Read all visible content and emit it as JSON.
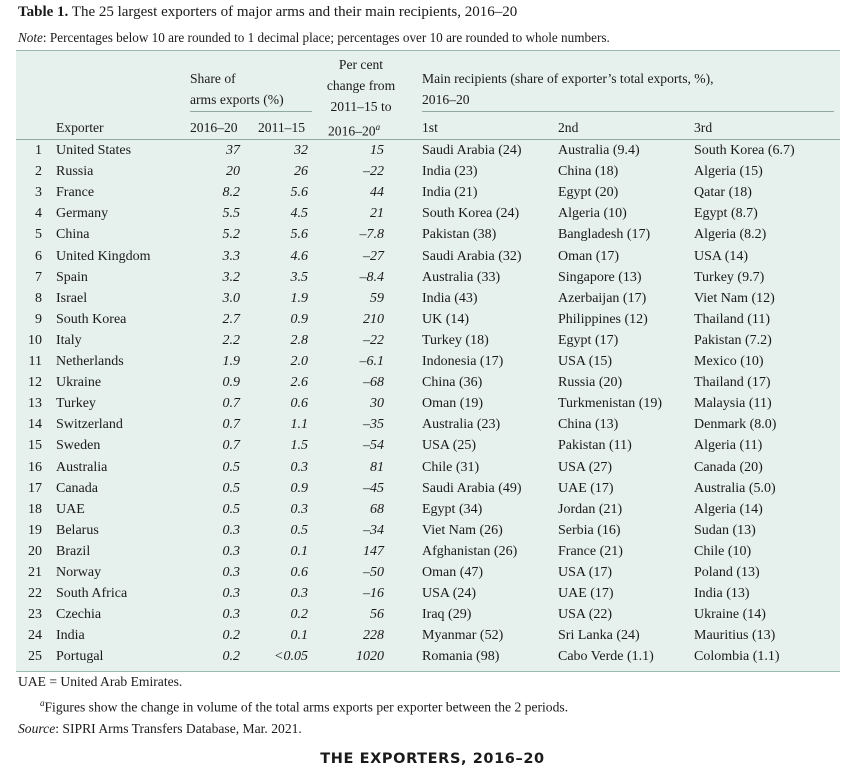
{
  "title": {
    "label": "Table 1.",
    "text": "The 25 largest exporters of major arms and their main recipients, 2016–20"
  },
  "note": {
    "label": "Note",
    "text": ": Percentages below 10 are rounded to 1 decimal place; percentages over 10 are rounded to whole numbers."
  },
  "headers": {
    "share_group_line1": "Share of",
    "share_group_line2": "arms exports (%)",
    "change_line1": "Per cent",
    "change_line2": "change from",
    "change_line3": "2011–15 to",
    "change_line4": "2016–20",
    "change_sup": "a",
    "recipients_line1": "Main recipients (share of exporter’s total exports, %),",
    "recipients_line2": "2016–20",
    "exporter": "Exporter",
    "share_2016": "2016–20",
    "share_2011": "2011–15",
    "first": "1st",
    "second": "2nd",
    "third": "3rd"
  },
  "rows": [
    {
      "rank": "1",
      "exporter": "United States",
      "s2016": "37",
      "s2011": "32",
      "change": "15",
      "first": "Saudi Arabia (24)",
      "second": "Australia (9.4)",
      "third": "South Korea (6.7)"
    },
    {
      "rank": "2",
      "exporter": "Russia",
      "s2016": "20",
      "s2011": "26",
      "change": "–22",
      "first": "India (23)",
      "second": "China (18)",
      "third": "Algeria (15)"
    },
    {
      "rank": "3",
      "exporter": "France",
      "s2016": "8.2",
      "s2011": "5.6",
      "change": "44",
      "first": "India (21)",
      "second": "Egypt (20)",
      "third": "Qatar (18)"
    },
    {
      "rank": "4",
      "exporter": "Germany",
      "s2016": "5.5",
      "s2011": "4.5",
      "change": "21",
      "first": "South Korea (24)",
      "second": "Algeria (10)",
      "third": "Egypt (8.7)"
    },
    {
      "rank": "5",
      "exporter": "China",
      "s2016": "5.2",
      "s2011": "5.6",
      "change": "–7.8",
      "first": "Pakistan (38)",
      "second": "Bangladesh (17)",
      "third": "Algeria (8.2)"
    },
    {
      "rank": "6",
      "exporter": "United Kingdom",
      "s2016": "3.3",
      "s2011": "4.6",
      "change": "–27",
      "first": "Saudi Arabia (32)",
      "second": "Oman (17)",
      "third": "USA (14)"
    },
    {
      "rank": "7",
      "exporter": "Spain",
      "s2016": "3.2",
      "s2011": "3.5",
      "change": "–8.4",
      "first": "Australia (33)",
      "second": "Singapore (13)",
      "third": "Turkey (9.7)"
    },
    {
      "rank": "8",
      "exporter": "Israel",
      "s2016": "3.0",
      "s2011": "1.9",
      "change": "59",
      "first": "India (43)",
      "second": "Azerbaijan (17)",
      "third": "Viet Nam (12)"
    },
    {
      "rank": "9",
      "exporter": "South Korea",
      "s2016": "2.7",
      "s2011": "0.9",
      "change": "210",
      "first": "UK (14)",
      "second": "Philippines (12)",
      "third": "Thailand (11)"
    },
    {
      "rank": "10",
      "exporter": "Italy",
      "s2016": "2.2",
      "s2011": "2.8",
      "change": "–22",
      "first": "Turkey (18)",
      "second": "Egypt (17)",
      "third": "Pakistan (7.2)"
    },
    {
      "rank": "11",
      "exporter": "Netherlands",
      "s2016": "1.9",
      "s2011": "2.0",
      "change": "–6.1",
      "first": "Indonesia (17)",
      "second": "USA (15)",
      "third": "Mexico (10)"
    },
    {
      "rank": "12",
      "exporter": "Ukraine",
      "s2016": "0.9",
      "s2011": "2.6",
      "change": "–68",
      "first": "China (36)",
      "second": "Russia (20)",
      "third": "Thailand (17)"
    },
    {
      "rank": "13",
      "exporter": "Turkey",
      "s2016": "0.7",
      "s2011": "0.6",
      "change": "30",
      "first": "Oman (19)",
      "second": "Turkmenistan (19)",
      "third": "Malaysia (11)"
    },
    {
      "rank": "14",
      "exporter": "Switzerland",
      "s2016": "0.7",
      "s2011": "1.1",
      "change": "–35",
      "first": "Australia (23)",
      "second": "China (13)",
      "third": "Denmark (8.0)"
    },
    {
      "rank": "15",
      "exporter": "Sweden",
      "s2016": "0.7",
      "s2011": "1.5",
      "change": "–54",
      "first": "USA (25)",
      "second": "Pakistan (11)",
      "third": "Algeria (11)"
    },
    {
      "rank": "16",
      "exporter": "Australia",
      "s2016": "0.5",
      "s2011": "0.3",
      "change": "81",
      "first": "Chile (31)",
      "second": "USA (27)",
      "third": "Canada (20)"
    },
    {
      "rank": "17",
      "exporter": "Canada",
      "s2016": "0.5",
      "s2011": "0.9",
      "change": "–45",
      "first": "Saudi Arabia (49)",
      "second": "UAE (17)",
      "third": "Australia (5.0)"
    },
    {
      "rank": "18",
      "exporter": "UAE",
      "s2016": "0.5",
      "s2011": "0.3",
      "change": "68",
      "first": "Egypt (34)",
      "second": "Jordan (21)",
      "third": "Algeria (14)"
    },
    {
      "rank": "19",
      "exporter": "Belarus",
      "s2016": "0.3",
      "s2011": "0.5",
      "change": "–34",
      "first": "Viet Nam (26)",
      "second": "Serbia (16)",
      "third": "Sudan (13)"
    },
    {
      "rank": "20",
      "exporter": "Brazil",
      "s2016": "0.3",
      "s2011": "0.1",
      "change": "147",
      "first": "Afghanistan (26)",
      "second": "France (21)",
      "third": "Chile (10)"
    },
    {
      "rank": "21",
      "exporter": "Norway",
      "s2016": "0.3",
      "s2011": "0.6",
      "change": "–50",
      "first": "Oman (47)",
      "second": "USA (17)",
      "third": "Poland (13)"
    },
    {
      "rank": "22",
      "exporter": "South Africa",
      "s2016": "0.3",
      "s2011": "0.3",
      "change": "–16",
      "first": "USA (24)",
      "second": "UAE (17)",
      "third": "India (13)"
    },
    {
      "rank": "23",
      "exporter": "Czechia",
      "s2016": "0.3",
      "s2011": "0.2",
      "change": "56",
      "first": "Iraq (29)",
      "second": "USA (22)",
      "third": "Ukraine (14)"
    },
    {
      "rank": "24",
      "exporter": "India",
      "s2016": "0.2",
      "s2011": "0.1",
      "change": "228",
      "first": "Myanmar (52)",
      "second": "Sri Lanka (24)",
      "third": "Mauritius (13)"
    },
    {
      "rank": "25",
      "exporter": "Portugal",
      "s2016": "0.2",
      "s2011": "<0.05",
      "change": "1020",
      "first": "Romania (98)",
      "second": "Cabo Verde (1.1)",
      "third": "Colombia (1.1)"
    }
  ],
  "footnotes": {
    "uae": "UAE = United Arab Emirates.",
    "a_mark": "a",
    "a_text": "Figures show the change in volume of the total arms exports per exporter between the 2 periods.",
    "source_label": "Source",
    "source_text": ": SIPRI Arms Transfers Database, Mar. 2021."
  },
  "banner": "THE EXPORTERS, 2016–20",
  "colors": {
    "table_bg": "#e6f1ee",
    "rule": "#8faaa4"
  }
}
